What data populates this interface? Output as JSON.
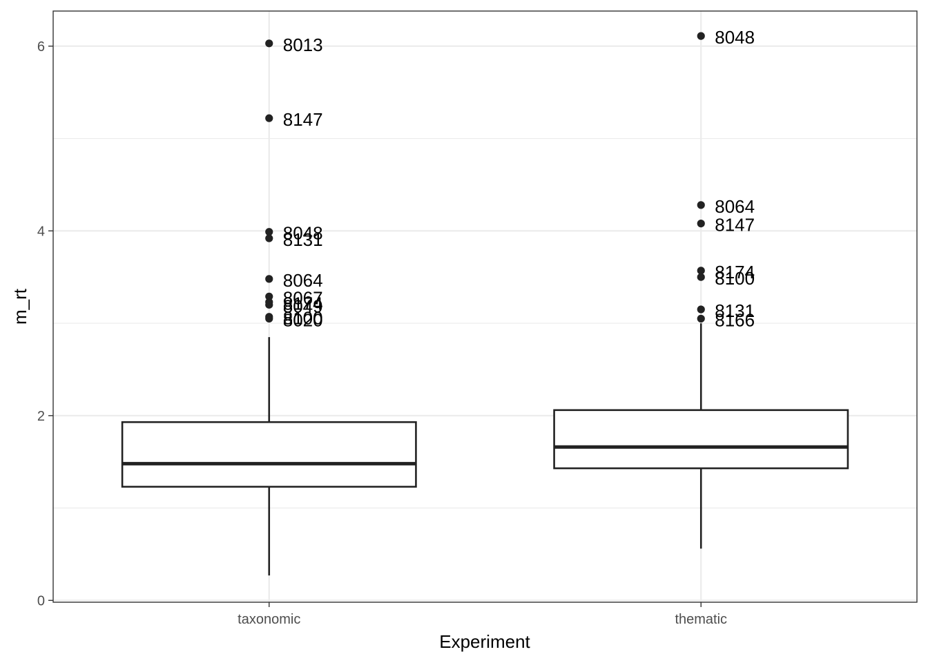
{
  "chart_data": {
    "type": "boxplot",
    "xlabel": "Experiment",
    "ylabel": "m_rt",
    "categories": [
      "taxonomic",
      "thematic"
    ],
    "ylim": [
      -0.02,
      6.38
    ],
    "yticks": [
      0,
      2,
      4,
      6
    ],
    "yminor": [
      1,
      3,
      5
    ],
    "grid": true,
    "boxes": [
      {
        "category": "taxonomic",
        "whisker_low": 0.27,
        "q1": 1.23,
        "median": 1.48,
        "q3": 1.93,
        "whisker_high": 2.85,
        "outliers": [
          {
            "value": 6.03,
            "label": "8013"
          },
          {
            "value": 5.22,
            "label": "8147"
          },
          {
            "value": 3.99,
            "label": "8048"
          },
          {
            "value": 3.92,
            "label": "8131"
          },
          {
            "value": 3.48,
            "label": "8064"
          },
          {
            "value": 3.29,
            "label": "8067"
          },
          {
            "value": 3.23,
            "label": "8174"
          },
          {
            "value": 3.2,
            "label": "8049"
          },
          {
            "value": 3.07,
            "label": "8100"
          },
          {
            "value": 3.05,
            "label": "8020"
          }
        ]
      },
      {
        "category": "thematic",
        "whisker_low": 0.56,
        "q1": 1.43,
        "median": 1.66,
        "q3": 2.06,
        "whisker_high": 3.0,
        "outliers": [
          {
            "value": 6.11,
            "label": "8048"
          },
          {
            "value": 4.28,
            "label": "8064"
          },
          {
            "value": 4.08,
            "label": "8147"
          },
          {
            "value": 3.57,
            "label": "8174"
          },
          {
            "value": 3.5,
            "label": "8100"
          },
          {
            "value": 3.15,
            "label": "8131"
          },
          {
            "value": 3.05,
            "label": "8166"
          }
        ]
      }
    ]
  }
}
